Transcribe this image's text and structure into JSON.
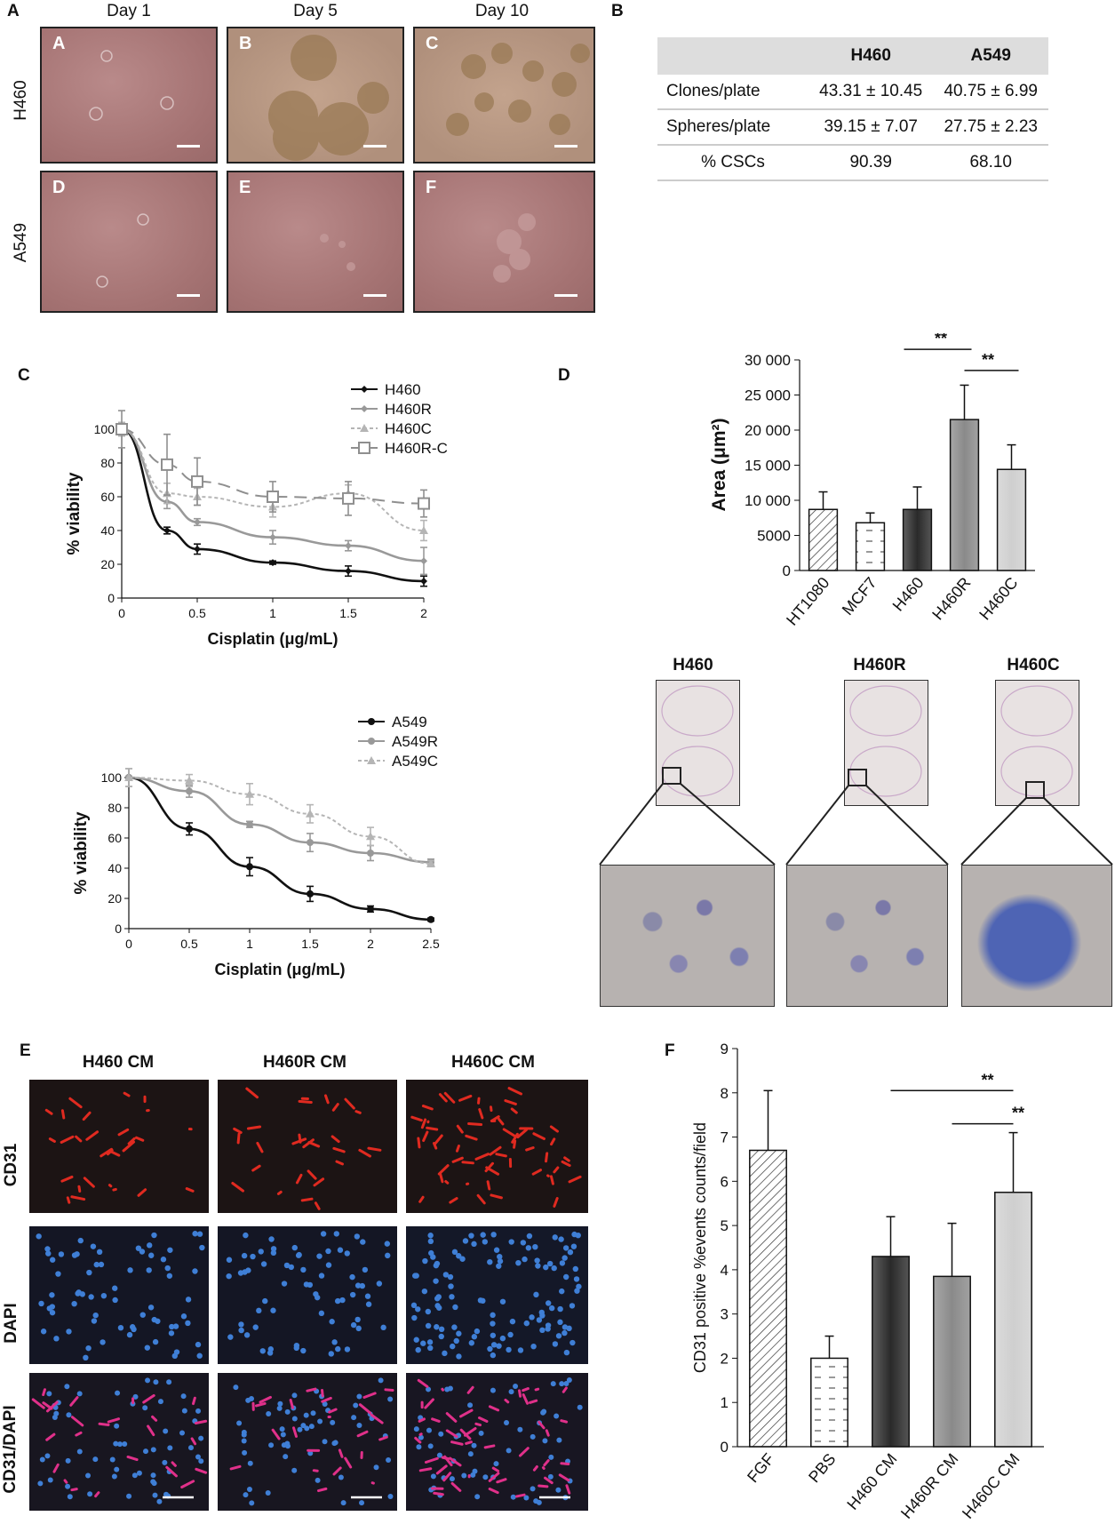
{
  "panel_labels": {
    "A": "A",
    "B": "B",
    "C": "C",
    "D": "D",
    "E": "E",
    "F": "F"
  },
  "panelA": {
    "columns": [
      "Day 1",
      "Day 5",
      "Day 10"
    ],
    "rows": [
      "H460",
      "A549"
    ],
    "image_tags": [
      "A",
      "B",
      "C",
      "D",
      "E",
      "F"
    ]
  },
  "panelB": {
    "headers": [
      "",
      "H460",
      "A549"
    ],
    "rows": [
      {
        "label": "Clones/plate",
        "h460": "43.31 ± 10.45",
        "a549": "40.75 ± 6.99"
      },
      {
        "label": "Spheres/plate",
        "h460": "39.15 ± 7.07",
        "a549": "27.75 ± 2.23"
      },
      {
        "label": "% CSCs",
        "h460": "90.39",
        "a549": "68.10"
      }
    ]
  },
  "panelD_images": {
    "titles": [
      "H460",
      "H460R",
      "H460C"
    ]
  },
  "panelE": {
    "columns": [
      "H460 CM",
      "H460R CM",
      "H460C CM"
    ],
    "rows": [
      "CD31",
      "DAPI",
      "CD31/DAPI"
    ]
  },
  "chart_data": [
    {
      "id": "C1",
      "type": "line",
      "xlabel": "Cisplatin (μg/mL)",
      "ylabel": "% viability",
      "xlim": [
        0,
        2
      ],
      "ylim": [
        0,
        100
      ],
      "xticks": [
        "0",
        "0.5",
        "1",
        "1.5",
        "2"
      ],
      "yticks": [
        "0",
        "20",
        "40",
        "60",
        "80",
        "100"
      ],
      "x": [
        0,
        0.3,
        0.5,
        1,
        1.5,
        2
      ],
      "legend_position": "top-right",
      "series": [
        {
          "name": "H460",
          "values": [
            100,
            40,
            29,
            21,
            16,
            10
          ],
          "err": [
            3,
            2,
            3,
            1,
            3,
            3
          ],
          "color": "#111111",
          "dash": "",
          "marker": "diamond"
        },
        {
          "name": "H460R",
          "values": [
            100,
            57,
            45,
            36,
            31,
            22
          ],
          "err": [
            4,
            4,
            2,
            4,
            3,
            8
          ],
          "color": "#999999",
          "dash": "",
          "marker": "diamond"
        },
        {
          "name": "H460C",
          "values": [
            100,
            62,
            60,
            54,
            62,
            40
          ],
          "err": [
            4,
            6,
            5,
            6,
            5,
            6
          ],
          "color": "#b5b5b5",
          "dash": "4,3",
          "marker": "triangle"
        },
        {
          "name": "H460R-C",
          "values": [
            100,
            79,
            69,
            60,
            59,
            56
          ],
          "err": [
            11,
            18,
            14,
            9,
            10,
            8
          ],
          "color": "#8f8f8f",
          "dash": "14,8",
          "marker": "square"
        }
      ]
    },
    {
      "id": "C2",
      "type": "line",
      "xlabel": "Cisplatin (μg/mL)",
      "ylabel": "% viability",
      "xlim": [
        0,
        2.5
      ],
      "ylim": [
        0,
        100
      ],
      "xticks": [
        "0",
        "0.5",
        "1",
        "1.5",
        "2",
        "2.5"
      ],
      "yticks": [
        "0",
        "20",
        "40",
        "60",
        "80",
        "100"
      ],
      "x": [
        0,
        0.5,
        1,
        1.5,
        2,
        2.5
      ],
      "legend_position": "top-right",
      "series": [
        {
          "name": "A549",
          "values": [
            100,
            66,
            41,
            23,
            13,
            6
          ],
          "err": [
            6,
            4,
            6,
            5,
            2,
            1
          ],
          "color": "#111111",
          "dash": "",
          "marker": "circle"
        },
        {
          "name": "A549R",
          "values": [
            100,
            91,
            69,
            57,
            50,
            44
          ],
          "err": [
            6,
            4,
            2,
            6,
            5,
            2
          ],
          "color": "#999999",
          "dash": "",
          "marker": "circle"
        },
        {
          "name": "A549C",
          "values": [
            100,
            98,
            89,
            76,
            61,
            43
          ],
          "err": [
            6,
            4,
            7,
            6,
            6,
            2
          ],
          "color": "#b5b5b5",
          "dash": "4,3",
          "marker": "triangle"
        }
      ]
    },
    {
      "id": "D",
      "type": "bar",
      "ylabel": "Area (μm²)",
      "ylim": [
        0,
        30000
      ],
      "yticks": [
        "0",
        "5000",
        "10 000",
        "15 000",
        "20 000",
        "25 000",
        "30 000"
      ],
      "categories": [
        "HT1080",
        "MCF7",
        "H460",
        "H460R",
        "H460C"
      ],
      "values": [
        8700,
        6800,
        8700,
        21500,
        14400
      ],
      "err": [
        2500,
        1400,
        3200,
        4900,
        3500
      ],
      "fills": [
        "hatch",
        "dash",
        "#2a2a2a",
        "#8a8a8a",
        "#cfcfcf"
      ],
      "significance": [
        {
          "from": 2,
          "to": 3,
          "label": "**",
          "y": 31500
        },
        {
          "from": 3,
          "to": 4,
          "label": "**",
          "y": 28500
        }
      ]
    },
    {
      "id": "F",
      "type": "bar",
      "ylabel": "CD31 positive %events counts/field",
      "ylim": [
        0,
        9
      ],
      "yticks": [
        "0",
        "1",
        "2",
        "3",
        "4",
        "5",
        "6",
        "7",
        "8",
        "9"
      ],
      "categories": [
        "FGF",
        "PBS",
        "H460 CM",
        "H460R CM",
        "H460C CM"
      ],
      "values": [
        6.7,
        2.0,
        4.3,
        3.85,
        5.75
      ],
      "err": [
        1.35,
        0.5,
        0.9,
        1.2,
        1.35
      ],
      "fills": [
        "hatch",
        "dash",
        "#2a2a2a",
        "#8a8a8a",
        "#cfcfcf"
      ],
      "significance": [
        {
          "from": 2,
          "to": 4,
          "label": "**",
          "y": 8.05
        },
        {
          "from": 3,
          "to": 4,
          "label": "**",
          "y": 7.3
        }
      ]
    }
  ]
}
